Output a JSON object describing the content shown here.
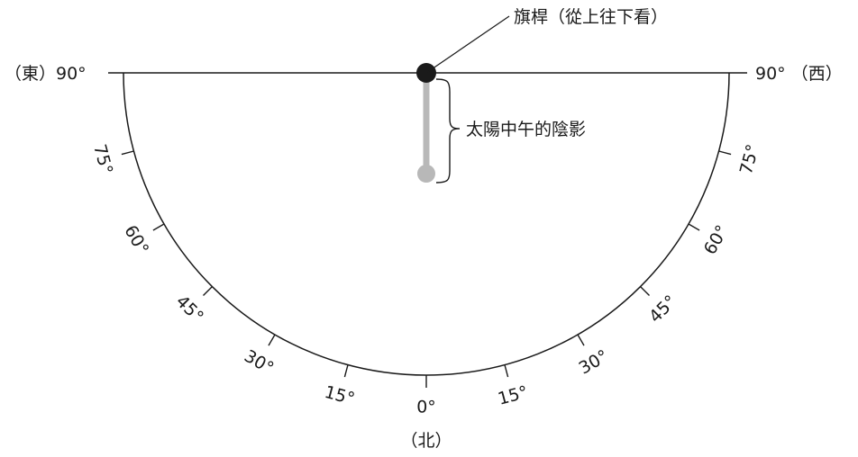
{
  "labels": {
    "pole": "旗桿（從上往下看）",
    "shadow": "太陽中午的陰影",
    "east": "（東）90°",
    "west": "90° （西）",
    "north": "（北）"
  },
  "ticks": [
    {
      "angle": 75,
      "text": "75°"
    },
    {
      "angle": 60,
      "text": "60°"
    },
    {
      "angle": 45,
      "text": "45°"
    },
    {
      "angle": 30,
      "text": "30°"
    },
    {
      "angle": 15,
      "text": "15°"
    },
    {
      "angle": 0,
      "text": "0°"
    }
  ],
  "colors": {
    "pole": "#1a1a1a",
    "shadow": "#b8b8b8",
    "line": "#1a1a1a"
  }
}
